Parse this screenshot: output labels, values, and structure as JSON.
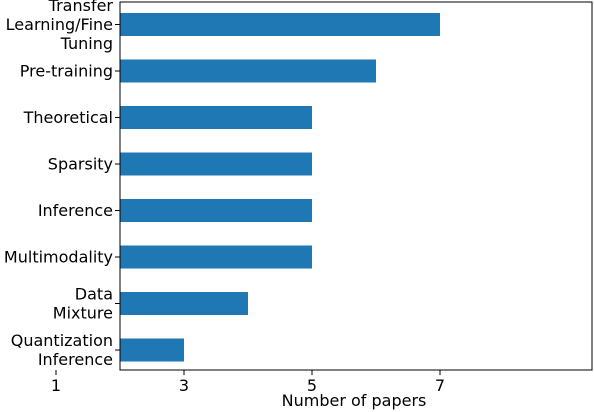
{
  "chart_data": {
    "type": "bar",
    "orientation": "horizontal",
    "categories": [
      [
        "Transfer",
        "Learning/Fine",
        "Tuning"
      ],
      [
        "Pre-training"
      ],
      [
        "Theoretical"
      ],
      [
        "Sparsity"
      ],
      [
        "Inference"
      ],
      [
        "Multimodality"
      ],
      [
        "Data",
        "Mixture"
      ],
      [
        "Quantization",
        "Inference"
      ]
    ],
    "values": [
      7,
      6,
      5,
      5,
      5,
      5,
      4,
      3
    ],
    "xlabel": "Number of papers",
    "ylabel": "",
    "xlim": [
      0,
      7.4
    ],
    "xticks": [
      1,
      3,
      5,
      7
    ],
    "grid": false,
    "legend": "none",
    "colors": {
      "bar": "#1f77b4",
      "axis": "#000000"
    }
  }
}
